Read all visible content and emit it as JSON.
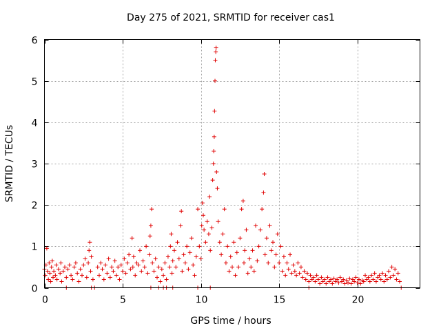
{
  "chart_data": {
    "type": "scatter",
    "title": "Day 275 of 2021, SRMTID for receiver cas1",
    "xlabel": "GPS time / hours",
    "ylabel": "SRMTID / TECUs",
    "xlim": [
      0,
      24
    ],
    "ylim": [
      0,
      6
    ],
    "xticks": [
      0,
      5,
      10,
      15,
      20
    ],
    "yticks": [
      0,
      1,
      2,
      3,
      4,
      5,
      6
    ],
    "grid": true,
    "marker": "+",
    "color": "#e00000",
    "series": [
      {
        "name": "SRMTID cas1",
        "points": [
          [
            0.0,
            0.45
          ],
          [
            0.05,
            0.3
          ],
          [
            0.1,
            0.55
          ],
          [
            0.15,
            0.95
          ],
          [
            0.2,
            0.4
          ],
          [
            0.25,
            0.2
          ],
          [
            0.3,
            0.6
          ],
          [
            0.35,
            0.35
          ],
          [
            0.4,
            0.15
          ],
          [
            0.45,
            0.5
          ],
          [
            0.5,
            0.65
          ],
          [
            0.55,
            0.25
          ],
          [
            0.6,
            0.4
          ],
          [
            0.7,
            0.3
          ],
          [
            0.75,
            0.55
          ],
          [
            0.8,
            0.2
          ],
          [
            0.9,
            0.45
          ],
          [
            1.0,
            0.35
          ],
          [
            1.05,
            0.6
          ],
          [
            1.1,
            0.15
          ],
          [
            1.2,
            0.4
          ],
          [
            1.3,
            0.5
          ],
          [
            1.4,
            0.25
          ],
          [
            1.5,
            0.45
          ],
          [
            1.6,
            0.55
          ],
          [
            1.7,
            0.3
          ],
          [
            1.8,
            0.2
          ],
          [
            1.9,
            0.5
          ],
          [
            2.0,
            0.6
          ],
          [
            2.1,
            0.35
          ],
          [
            2.2,
            0.15
          ],
          [
            2.3,
            0.45
          ],
          [
            2.4,
            0.3
          ],
          [
            2.5,
            0.55
          ],
          [
            2.6,
            0.7
          ],
          [
            2.7,
            0.25
          ],
          [
            2.8,
            0.6
          ],
          [
            2.85,
            0.9
          ],
          [
            2.9,
            1.1
          ],
          [
            2.95,
            0.4
          ],
          [
            3.0,
            0.75
          ],
          [
            3.1,
            0.2
          ],
          [
            3.4,
            0.5
          ],
          [
            3.5,
            0.3
          ],
          [
            3.6,
            0.6
          ],
          [
            3.7,
            0.45
          ],
          [
            3.8,
            0.2
          ],
          [
            3.9,
            0.55
          ],
          [
            4.0,
            0.35
          ],
          [
            4.1,
            0.7
          ],
          [
            4.2,
            0.25
          ],
          [
            4.3,
            0.5
          ],
          [
            4.4,
            0.4
          ],
          [
            4.5,
            0.65
          ],
          [
            4.6,
            0.3
          ],
          [
            4.7,
            0.5
          ],
          [
            4.8,
            0.2
          ],
          [
            4.9,
            0.55
          ],
          [
            5.0,
            0.4
          ],
          [
            5.1,
            0.7
          ],
          [
            5.2,
            0.35
          ],
          [
            5.3,
            0.6
          ],
          [
            5.4,
            0.8
          ],
          [
            5.5,
            0.45
          ],
          [
            5.6,
            1.2
          ],
          [
            5.65,
            0.5
          ],
          [
            5.7,
            0.75
          ],
          [
            5.8,
            0.3
          ],
          [
            5.9,
            0.6
          ],
          [
            6.0,
            0.55
          ],
          [
            6.1,
            0.9
          ],
          [
            6.2,
            0.4
          ],
          [
            6.3,
            0.65
          ],
          [
            6.4,
            0.5
          ],
          [
            6.5,
            1.0
          ],
          [
            6.6,
            0.35
          ],
          [
            6.7,
            0.8
          ],
          [
            6.75,
            1.25
          ],
          [
            6.8,
            1.5
          ],
          [
            6.85,
            1.9
          ],
          [
            6.9,
            0.6
          ],
          [
            7.0,
            0.4
          ],
          [
            7.1,
            0.7
          ],
          [
            7.2,
            0.25
          ],
          [
            7.3,
            0.5
          ],
          [
            7.4,
            0.15
          ],
          [
            7.5,
            0.45
          ],
          [
            7.6,
            0.3
          ],
          [
            7.7,
            0.6
          ],
          [
            7.8,
            0.2
          ],
          [
            7.9,
            0.75
          ],
          [
            8.0,
            0.5
          ],
          [
            8.05,
            1.0
          ],
          [
            8.1,
            1.3
          ],
          [
            8.15,
            0.35
          ],
          [
            8.2,
            0.65
          ],
          [
            8.3,
            0.9
          ],
          [
            8.4,
            0.5
          ],
          [
            8.5,
            1.1
          ],
          [
            8.6,
            0.7
          ],
          [
            8.7,
            1.5
          ],
          [
            8.75,
            1.85
          ],
          [
            8.8,
            0.4
          ],
          [
            8.9,
            0.8
          ],
          [
            9.0,
            0.6
          ],
          [
            9.1,
            1.0
          ],
          [
            9.2,
            0.45
          ],
          [
            9.3,
            0.85
          ],
          [
            9.4,
            1.2
          ],
          [
            9.5,
            0.55
          ],
          [
            9.6,
            0.3
          ],
          [
            9.7,
            0.75
          ],
          [
            9.8,
            1.9
          ],
          [
            9.9,
            1.0
          ],
          [
            10.0,
            0.7
          ],
          [
            10.05,
            1.5
          ],
          [
            10.1,
            2.05
          ],
          [
            10.15,
            1.75
          ],
          [
            10.2,
            1.4
          ],
          [
            10.3,
            1.1
          ],
          [
            10.4,
            1.6
          ],
          [
            10.5,
            1.3
          ],
          [
            10.55,
            2.2
          ],
          [
            10.6,
            0.9
          ],
          [
            10.7,
            1.45
          ],
          [
            10.75,
            2.6
          ],
          [
            10.8,
            3.0
          ],
          [
            10.82,
            3.3
          ],
          [
            10.85,
            3.65
          ],
          [
            10.87,
            4.27
          ],
          [
            10.9,
            5.0
          ],
          [
            10.92,
            5.5
          ],
          [
            10.95,
            5.7
          ],
          [
            10.97,
            5.8
          ],
          [
            11.0,
            2.8
          ],
          [
            11.05,
            2.4
          ],
          [
            11.1,
            1.6
          ],
          [
            11.2,
            1.1
          ],
          [
            11.3,
            0.8
          ],
          [
            11.4,
            1.3
          ],
          [
            11.5,
            1.9
          ],
          [
            11.6,
            0.6
          ],
          [
            11.7,
            1.0
          ],
          [
            11.8,
            0.4
          ],
          [
            11.9,
            0.75
          ],
          [
            12.0,
            0.5
          ],
          [
            12.1,
            1.1
          ],
          [
            12.2,
            0.3
          ],
          [
            12.3,
            0.85
          ],
          [
            12.4,
            0.5
          ],
          [
            12.5,
            1.2
          ],
          [
            12.6,
            1.9
          ],
          [
            12.7,
            2.1
          ],
          [
            12.75,
            0.6
          ],
          [
            12.8,
            0.9
          ],
          [
            12.9,
            1.4
          ],
          [
            13.0,
            0.35
          ],
          [
            13.1,
            0.7
          ],
          [
            13.2,
            0.5
          ],
          [
            13.3,
            0.9
          ],
          [
            13.4,
            0.4
          ],
          [
            13.5,
            1.5
          ],
          [
            13.6,
            0.65
          ],
          [
            13.7,
            1.0
          ],
          [
            13.8,
            1.4
          ],
          [
            13.9,
            1.9
          ],
          [
            14.0,
            2.3
          ],
          [
            14.05,
            2.75
          ],
          [
            14.1,
            0.8
          ],
          [
            14.2,
            1.2
          ],
          [
            14.3,
            0.6
          ],
          [
            14.4,
            1.5
          ],
          [
            14.5,
            0.9
          ],
          [
            14.6,
            1.1
          ],
          [
            14.7,
            0.5
          ],
          [
            14.8,
            0.8
          ],
          [
            14.9,
            1.3
          ],
          [
            15.0,
            0.6
          ],
          [
            15.1,
            1.0
          ],
          [
            15.2,
            0.4
          ],
          [
            15.3,
            0.75
          ],
          [
            15.4,
            0.3
          ],
          [
            15.5,
            0.6
          ],
          [
            15.6,
            0.45
          ],
          [
            15.7,
            0.8
          ],
          [
            15.8,
            0.35
          ],
          [
            15.9,
            0.55
          ],
          [
            16.0,
            0.4
          ],
          [
            16.1,
            0.3
          ],
          [
            16.2,
            0.6
          ],
          [
            16.3,
            0.35
          ],
          [
            16.4,
            0.5
          ],
          [
            16.5,
            0.25
          ],
          [
            16.6,
            0.4
          ],
          [
            16.7,
            0.2
          ],
          [
            16.8,
            0.35
          ],
          [
            16.9,
            0.15
          ],
          [
            17.0,
            0.3
          ],
          [
            17.1,
            0.2
          ],
          [
            17.2,
            0.25
          ],
          [
            17.3,
            0.15
          ],
          [
            17.4,
            0.3
          ],
          [
            17.5,
            0.2
          ],
          [
            17.6,
            0.1
          ],
          [
            17.7,
            0.25
          ],
          [
            17.8,
            0.15
          ],
          [
            17.9,
            0.2
          ],
          [
            18.0,
            0.1
          ],
          [
            18.1,
            0.25
          ],
          [
            18.2,
            0.15
          ],
          [
            18.3,
            0.2
          ],
          [
            18.4,
            0.1
          ],
          [
            18.5,
            0.22
          ],
          [
            18.6,
            0.15
          ],
          [
            18.7,
            0.2
          ],
          [
            18.8,
            0.12
          ],
          [
            18.9,
            0.25
          ],
          [
            19.0,
            0.15
          ],
          [
            19.1,
            0.2
          ],
          [
            19.2,
            0.1
          ],
          [
            19.3,
            0.18
          ],
          [
            19.4,
            0.12
          ],
          [
            19.5,
            0.22
          ],
          [
            19.6,
            0.1
          ],
          [
            19.7,
            0.2
          ],
          [
            19.8,
            0.15
          ],
          [
            19.9,
            0.25
          ],
          [
            20.0,
            0.12
          ],
          [
            20.1,
            0.2
          ],
          [
            20.2,
            0.1
          ],
          [
            20.3,
            0.18
          ],
          [
            20.4,
            0.15
          ],
          [
            20.5,
            0.3
          ],
          [
            20.6,
            0.2
          ],
          [
            20.7,
            0.25
          ],
          [
            20.8,
            0.15
          ],
          [
            20.9,
            0.3
          ],
          [
            21.0,
            0.2
          ],
          [
            21.1,
            0.35
          ],
          [
            21.2,
            0.15
          ],
          [
            21.3,
            0.25
          ],
          [
            21.4,
            0.3
          ],
          [
            21.5,
            0.2
          ],
          [
            21.6,
            0.35
          ],
          [
            21.7,
            0.15
          ],
          [
            21.8,
            0.3
          ],
          [
            21.9,
            0.2
          ],
          [
            22.0,
            0.4
          ],
          [
            22.1,
            0.25
          ],
          [
            22.2,
            0.5
          ],
          [
            22.3,
            0.3
          ],
          [
            22.4,
            0.45
          ],
          [
            22.5,
            0.2
          ],
          [
            22.6,
            0.35
          ],
          [
            22.7,
            0.15
          ],
          [
            1.4,
            0.0
          ],
          [
            3.0,
            0.0
          ],
          [
            3.2,
            0.0
          ],
          [
            6.8,
            0.0
          ],
          [
            7.3,
            0.0
          ],
          [
            7.6,
            0.0
          ],
          [
            7.8,
            0.0
          ],
          [
            8.2,
            0.0
          ],
          [
            9.8,
            0.0
          ],
          [
            10.6,
            0.0
          ],
          [
            16.9,
            0.0
          ],
          [
            22.8,
            0.0
          ]
        ]
      }
    ]
  }
}
